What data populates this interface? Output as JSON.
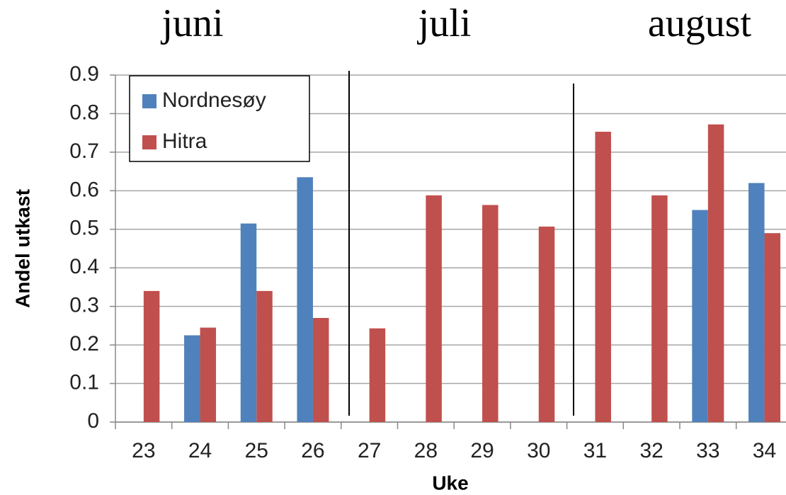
{
  "chart_data": {
    "type": "bar",
    "annotations": [
      "juni",
      "juli",
      "august"
    ],
    "x_label": "Uke",
    "y_label": "Andel utkast",
    "categories": [
      "23",
      "24",
      "25",
      "26",
      "27",
      "28",
      "29",
      "30",
      "31",
      "32",
      "33",
      "34"
    ],
    "series": [
      {
        "name": "Nordnesøy",
        "color": "#4f81bd",
        "values": [
          null,
          0.225,
          0.515,
          0.635,
          null,
          null,
          null,
          null,
          null,
          null,
          0.55,
          0.62
        ]
      },
      {
        "name": "Hitra",
        "color": "#c0504d",
        "values": [
          0.34,
          0.245,
          0.34,
          0.27,
          0.243,
          0.588,
          0.563,
          0.507,
          0.753,
          0.588,
          0.772,
          0.49
        ]
      }
    ],
    "ylim": [
      0,
      0.9
    ],
    "yticks": [
      0,
      0.1,
      0.2,
      0.3,
      0.4,
      0.5,
      0.6,
      0.7,
      0.8,
      0.9
    ],
    "grid": true,
    "legend": "upper left"
  }
}
